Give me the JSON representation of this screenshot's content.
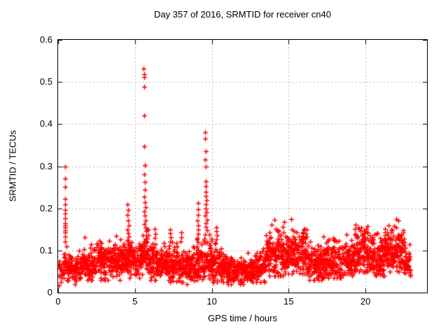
{
  "chart_data": {
    "type": "scatter",
    "title": "Day 357 of 2016, SRMTID for receiver cn40",
    "xlabel": "GPS time / hours",
    "ylabel": "SRMTID / TECUs",
    "xlim": [
      0,
      24
    ],
    "ylim": [
      0,
      0.6
    ],
    "xticks": [
      0,
      5,
      10,
      15,
      20
    ],
    "yticks": [
      0,
      0.1,
      0.2,
      0.3,
      0.4,
      0.5,
      0.6
    ],
    "grid": true,
    "legend": "none",
    "marker": {
      "symbol": "plus",
      "color": "#ff0000",
      "size": 7
    },
    "grid_color": "#b4b4b4",
    "axis_color": "#000000",
    "background_color": "#ffffff",
    "data_x_end": 22.9,
    "seed": 357,
    "baseline_segments": [
      {
        "x0": 0.02,
        "x1": 0.35,
        "mean": 0.048,
        "sd": 0.018,
        "min": 0.015,
        "max": 0.09,
        "pph": 70
      },
      {
        "x0": 0.35,
        "x1": 0.6,
        "mean": 0.065,
        "sd": 0.02,
        "min": 0.03,
        "max": 0.11,
        "pph": 110
      },
      {
        "x0": 0.6,
        "x1": 1.5,
        "mean": 0.055,
        "sd": 0.016,
        "min": 0.02,
        "max": 0.1,
        "pph": 110
      },
      {
        "x0": 1.5,
        "x1": 2.5,
        "mean": 0.065,
        "sd": 0.018,
        "min": 0.025,
        "max": 0.145,
        "pph": 115
      },
      {
        "x0": 2.5,
        "x1": 4.4,
        "mean": 0.075,
        "sd": 0.02,
        "min": 0.03,
        "max": 0.155,
        "pph": 120
      },
      {
        "x0": 4.4,
        "x1": 5.0,
        "mean": 0.08,
        "sd": 0.022,
        "min": 0.035,
        "max": 0.14,
        "pph": 120
      },
      {
        "x0": 5.0,
        "x1": 5.5,
        "mean": 0.078,
        "sd": 0.02,
        "min": 0.03,
        "max": 0.13,
        "pph": 115
      },
      {
        "x0": 5.5,
        "x1": 5.9,
        "mean": 0.09,
        "sd": 0.025,
        "min": 0.04,
        "max": 0.15,
        "pph": 120
      },
      {
        "x0": 5.9,
        "x1": 7.0,
        "mean": 0.07,
        "sd": 0.02,
        "min": 0.03,
        "max": 0.13,
        "pph": 115
      },
      {
        "x0": 7.0,
        "x1": 8.2,
        "mean": 0.065,
        "sd": 0.02,
        "min": 0.025,
        "max": 0.135,
        "pph": 115
      },
      {
        "x0": 8.2,
        "x1": 9.0,
        "mean": 0.06,
        "sd": 0.018,
        "min": 0.02,
        "max": 0.11,
        "pph": 110
      },
      {
        "x0": 9.0,
        "x1": 10.0,
        "mean": 0.075,
        "sd": 0.025,
        "min": 0.03,
        "max": 0.16,
        "pph": 120
      },
      {
        "x0": 10.0,
        "x1": 10.6,
        "mean": 0.065,
        "sd": 0.022,
        "min": 0.025,
        "max": 0.15,
        "pph": 115
      },
      {
        "x0": 10.6,
        "x1": 11.3,
        "mean": 0.055,
        "sd": 0.016,
        "min": 0.02,
        "max": 0.1,
        "pph": 115
      },
      {
        "x0": 11.3,
        "x1": 12.6,
        "mean": 0.052,
        "sd": 0.015,
        "min": 0.02,
        "max": 0.095,
        "pph": 115
      },
      {
        "x0": 12.6,
        "x1": 13.5,
        "mean": 0.06,
        "sd": 0.018,
        "min": 0.025,
        "max": 0.11,
        "pph": 115
      },
      {
        "x0": 13.5,
        "x1": 14.8,
        "mean": 0.09,
        "sd": 0.028,
        "min": 0.04,
        "max": 0.19,
        "pph": 125
      },
      {
        "x0": 14.8,
        "x1": 16.2,
        "mean": 0.095,
        "sd": 0.026,
        "min": 0.045,
        "max": 0.175,
        "pph": 125
      },
      {
        "x0": 16.2,
        "x1": 17.2,
        "mean": 0.07,
        "sd": 0.022,
        "min": 0.03,
        "max": 0.135,
        "pph": 115
      },
      {
        "x0": 17.2,
        "x1": 18.5,
        "mean": 0.075,
        "sd": 0.022,
        "min": 0.035,
        "max": 0.145,
        "pph": 115
      },
      {
        "x0": 18.5,
        "x1": 19.3,
        "mean": 0.08,
        "sd": 0.024,
        "min": 0.04,
        "max": 0.155,
        "pph": 115
      },
      {
        "x0": 19.3,
        "x1": 20.2,
        "mean": 0.1,
        "sd": 0.028,
        "min": 0.05,
        "max": 0.19,
        "pph": 120
      },
      {
        "x0": 20.2,
        "x1": 21.2,
        "mean": 0.085,
        "sd": 0.024,
        "min": 0.04,
        "max": 0.16,
        "pph": 120
      },
      {
        "x0": 21.2,
        "x1": 22.5,
        "mean": 0.1,
        "sd": 0.026,
        "min": 0.05,
        "max": 0.175,
        "pph": 120
      },
      {
        "x0": 22.5,
        "x1": 22.9,
        "mean": 0.075,
        "sd": 0.02,
        "min": 0.04,
        "max": 0.12,
        "pph": 110
      }
    ],
    "spike_points": [
      [
        0.45,
        0.3
      ],
      [
        0.45,
        0.271
      ],
      [
        0.46,
        0.251
      ],
      [
        0.46,
        0.223
      ],
      [
        0.45,
        0.209
      ],
      [
        0.46,
        0.196
      ],
      [
        0.47,
        0.188
      ],
      [
        0.46,
        0.176
      ],
      [
        0.44,
        0.165
      ],
      [
        0.46,
        0.16
      ],
      [
        0.47,
        0.155
      ],
      [
        0.45,
        0.148
      ],
      [
        0.46,
        0.143
      ],
      [
        0.45,
        0.133
      ],
      [
        0.47,
        0.122
      ],
      [
        4.52,
        0.21
      ],
      [
        4.55,
        0.196
      ],
      [
        4.5,
        0.185
      ],
      [
        4.55,
        0.172
      ],
      [
        4.58,
        0.16
      ],
      [
        4.52,
        0.15
      ],
      [
        4.56,
        0.142
      ],
      [
        4.6,
        0.133
      ],
      [
        4.5,
        0.124
      ],
      [
        4.55,
        0.115
      ],
      [
        5.57,
        0.532
      ],
      [
        5.58,
        0.519
      ],
      [
        5.58,
        0.512
      ],
      [
        5.59,
        0.489
      ],
      [
        5.6,
        0.421
      ],
      [
        5.62,
        0.347
      ],
      [
        5.65,
        0.302
      ],
      [
        5.6,
        0.281
      ],
      [
        5.63,
        0.262
      ],
      [
        5.66,
        0.244
      ],
      [
        5.6,
        0.228
      ],
      [
        5.64,
        0.215
      ],
      [
        5.68,
        0.203
      ],
      [
        5.6,
        0.192
      ],
      [
        5.65,
        0.183
      ],
      [
        5.7,
        0.172
      ],
      [
        5.62,
        0.163
      ],
      [
        5.67,
        0.154
      ],
      [
        5.72,
        0.146
      ],
      [
        5.75,
        0.137
      ],
      [
        5.7,
        0.128
      ],
      [
        6.3,
        0.152
      ],
      [
        6.32,
        0.14
      ],
      [
        6.28,
        0.13
      ],
      [
        7.28,
        0.15
      ],
      [
        7.3,
        0.142
      ],
      [
        7.32,
        0.132
      ],
      [
        7.27,
        0.122
      ],
      [
        8.0,
        0.143
      ],
      [
        8.03,
        0.132
      ],
      [
        7.97,
        0.122
      ],
      [
        9.1,
        0.212
      ],
      [
        9.1,
        0.198
      ],
      [
        9.12,
        0.185
      ],
      [
        9.08,
        0.172
      ],
      [
        9.12,
        0.16
      ],
      [
        9.1,
        0.15
      ],
      [
        9.13,
        0.14
      ],
      [
        9.08,
        0.13
      ],
      [
        9.11,
        0.12
      ],
      [
        9.58,
        0.38
      ],
      [
        9.58,
        0.366
      ],
      [
        9.6,
        0.336
      ],
      [
        9.57,
        0.316
      ],
      [
        9.6,
        0.3
      ],
      [
        9.62,
        0.264
      ],
      [
        9.6,
        0.252
      ],
      [
        9.63,
        0.24
      ],
      [
        9.6,
        0.23
      ],
      [
        9.65,
        0.22
      ],
      [
        9.6,
        0.21
      ],
      [
        9.62,
        0.2
      ],
      [
        9.65,
        0.191
      ],
      [
        9.58,
        0.182
      ],
      [
        9.68,
        0.173
      ],
      [
        9.6,
        0.165
      ],
      [
        9.63,
        0.156
      ],
      [
        9.7,
        0.148
      ],
      [
        9.55,
        0.138
      ],
      [
        9.5,
        0.128
      ],
      [
        9.72,
        0.12
      ],
      [
        10.28,
        0.155
      ],
      [
        10.3,
        0.146
      ],
      [
        10.32,
        0.136
      ],
      [
        10.3,
        0.126
      ],
      [
        10.25,
        0.118
      ]
    ]
  }
}
